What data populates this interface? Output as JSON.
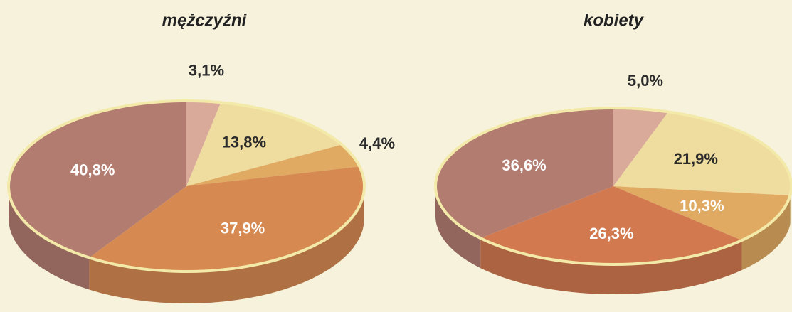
{
  "chart_data": [
    {
      "type": "pie",
      "title": "mężczyźni",
      "values": [
        3.1,
        13.8,
        4.4,
        37.9,
        40.8
      ],
      "value_labels": [
        "3,1%",
        "13,8%",
        "4,4%",
        "37,9%",
        "40,8%"
      ],
      "colors": [
        "#d9a99a",
        "#efdc9f",
        "#e0aa62",
        "#d68a52",
        "#b27c70"
      ]
    },
    {
      "type": "pie",
      "title": "kobiety",
      "values": [
        5.0,
        21.9,
        10.3,
        26.3,
        36.6
      ],
      "value_labels": [
        "5,0%",
        "21,9%",
        "10,3%",
        "26,3%",
        "36,6%"
      ],
      "colors": [
        "#d9a99a",
        "#efdc9f",
        "#e0aa62",
        "#d2794f",
        "#b27c70"
      ]
    }
  ]
}
